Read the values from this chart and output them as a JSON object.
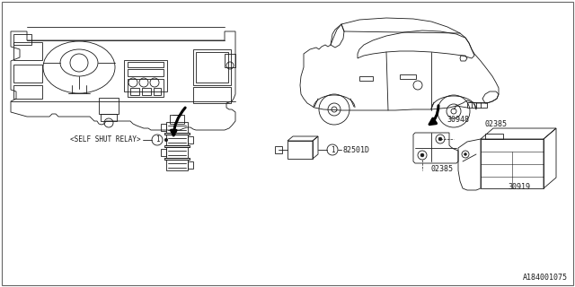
{
  "bg_color": "#ffffff",
  "line_color": "#1a1a1a",
  "fig_width": 6.4,
  "fig_height": 3.2,
  "dpi": 100,
  "watermark": "A184001075",
  "label_self_shut_relay": "<SELF SHUT RELAY>",
  "label_1a": "1",
  "label_82501D": "82501D",
  "label_30919": "30919",
  "label_30948": "30948",
  "label_02385_top": "02385",
  "label_02385_bot": "02385",
  "text_color": "#1a1a1a",
  "lw_main": 0.6,
  "lw_arrow": 2.2
}
